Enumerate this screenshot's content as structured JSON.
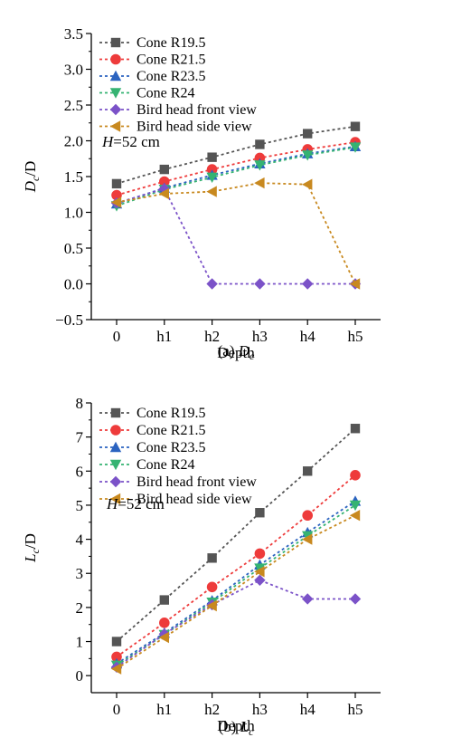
{
  "chart_data": [
    {
      "type": "line",
      "caption_prefix": "(a) ",
      "caption_var": "D",
      "caption_sub": "c",
      "ylabel_var": "D",
      "ylabel_sub": "c",
      "ylabel_tail": "/D",
      "xlabel": "Depth",
      "categories": [
        "0",
        "h1",
        "h2",
        "h3",
        "h4",
        "h5"
      ],
      "ylim": [
        -0.5,
        3.5
      ],
      "yticks": [
        "−0.5",
        "0.0",
        "0.5",
        "1.0",
        "1.5",
        "2.0",
        "2.5",
        "3.0",
        "3.5"
      ],
      "ytick_values": [
        -0.5,
        0.0,
        0.5,
        1.0,
        1.5,
        2.0,
        2.5,
        3.0,
        3.5
      ],
      "annotation_var": "H",
      "annotation_text": "=52 cm",
      "legend_placement": "top-left",
      "series": [
        {
          "name": "Cone R19.5",
          "values": [
            1.4,
            1.6,
            1.77,
            1.95,
            2.1,
            2.2
          ],
          "color": "#555555",
          "marker": "square"
        },
        {
          "name": "Cone R21.5",
          "values": [
            1.24,
            1.43,
            1.6,
            1.76,
            1.88,
            1.98
          ],
          "color": "#ee3b3b",
          "marker": "circle"
        },
        {
          "name": "Cone R23.5",
          "values": [
            1.12,
            1.34,
            1.52,
            1.68,
            1.82,
            1.92
          ],
          "color": "#2b63c0",
          "marker": "triangle-up"
        },
        {
          "name": "Cone R24",
          "values": [
            1.09,
            1.32,
            1.49,
            1.66,
            1.8,
            1.91
          ],
          "color": "#35b372",
          "marker": "triangle-down"
        },
        {
          "name": "Bird head front view",
          "values": [
            1.13,
            1.33,
            0.0,
            0.0,
            0.0,
            0.0
          ],
          "color": "#7b52c8",
          "marker": "diamond"
        },
        {
          "name": "Bird head side view",
          "values": [
            1.14,
            1.26,
            1.29,
            1.41,
            1.39,
            0.0
          ],
          "color": "#c8891f",
          "marker": "triangle-left"
        }
      ]
    },
    {
      "type": "line",
      "caption_prefix": "(b) ",
      "caption_var": "L",
      "caption_sub": "c",
      "ylabel_var": "L",
      "ylabel_sub": "c",
      "ylabel_tail": "/D",
      "xlabel": "Depth",
      "categories": [
        "0",
        "h1",
        "h2",
        "h3",
        "h4",
        "h5"
      ],
      "ylim": [
        -0.5,
        8
      ],
      "yticks": [
        "0",
        "1",
        "2",
        "3",
        "4",
        "5",
        "6",
        "7",
        "8"
      ],
      "ytick_values": [
        0,
        1,
        2,
        3,
        4,
        5,
        6,
        7,
        8
      ],
      "annotation_var": "H",
      "annotation_text": "=52 cm",
      "legend_placement": "top-left",
      "series": [
        {
          "name": "Cone R19.5",
          "values": [
            1.0,
            2.22,
            3.45,
            4.78,
            6.0,
            7.25
          ],
          "color": "#555555",
          "marker": "square"
        },
        {
          "name": "Cone R21.5",
          "values": [
            0.55,
            1.55,
            2.6,
            3.58,
            4.7,
            5.88
          ],
          "color": "#ee3b3b",
          "marker": "circle"
        },
        {
          "name": "Cone R23.5",
          "values": [
            0.35,
            1.25,
            2.2,
            3.25,
            4.2,
            5.12
          ],
          "color": "#2b63c0",
          "marker": "triangle-up"
        },
        {
          "name": "Cone R24",
          "values": [
            0.3,
            1.2,
            2.15,
            3.15,
            4.1,
            5.0
          ],
          "color": "#35b372",
          "marker": "triangle-down"
        },
        {
          "name": "Bird head front view",
          "values": [
            0.25,
            1.22,
            2.08,
            2.8,
            2.25,
            2.25
          ],
          "color": "#7b52c8",
          "marker": "diamond"
        },
        {
          "name": "Bird head side view",
          "values": [
            0.2,
            1.12,
            2.05,
            3.05,
            4.0,
            4.7
          ],
          "color": "#c8891f",
          "marker": "triangle-left"
        }
      ]
    }
  ]
}
